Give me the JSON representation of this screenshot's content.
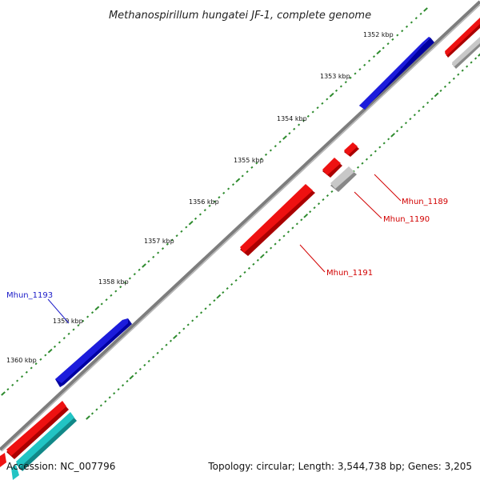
{
  "title": "Methanospirillum hungatei JF-1, complete genome",
  "colors": {
    "backbone": "#8a8a8a",
    "tick": "#2e8b2e",
    "forward_gene": "#1c1cdc",
    "reverse_gene": "#ee1111",
    "pseudo_gene": "#b0b0b0",
    "rna_gene": "#22c4c4",
    "label_red": "#d20000",
    "label_blue": "#1a1ac8"
  },
  "position_labels": [
    "1352 kbp",
    "1353 kbp",
    "1354 kbp",
    "1355 kbp",
    "1356 kbp",
    "1357 kbp",
    "1358 kbp",
    "1359 kbp",
    "1360 kbp"
  ],
  "gene_labels": {
    "mhun_1189": "Mhun_1189",
    "mhun_1190": "Mhun_1190",
    "mhun_1191": "Mhun_1191",
    "mhun_1193": "Mhun_1193"
  },
  "footer": {
    "accession": "Accession: NC_007796",
    "summary": "Topology: circular; Length: 3,544,738 bp; Genes: 3,205"
  }
}
